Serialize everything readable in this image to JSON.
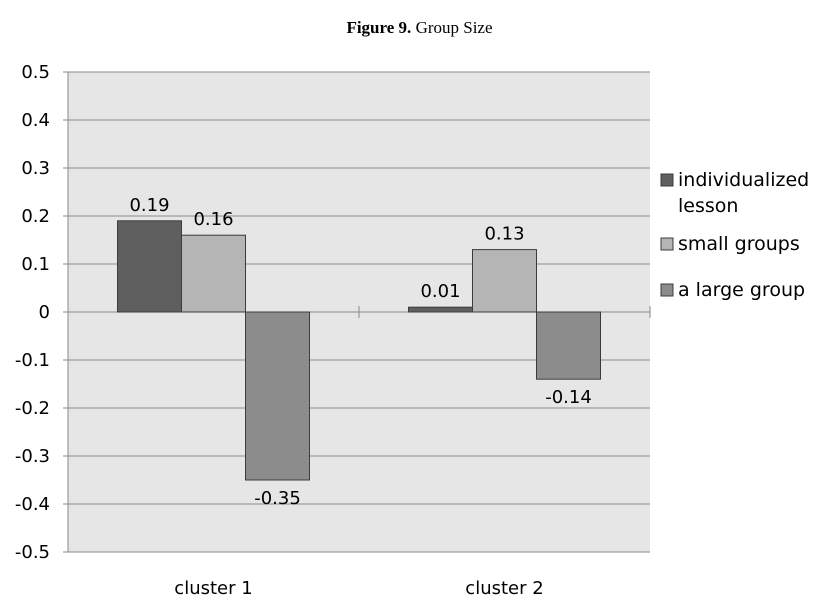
{
  "figure_label": "Figure 9.",
  "chart_data": {
    "type": "bar",
    "title": "Group Size",
    "categories": [
      "cluster 1",
      "cluster 2"
    ],
    "series": [
      {
        "name": "individualized lesson",
        "values": [
          0.19,
          0.01
        ],
        "color": "#5f5f5f"
      },
      {
        "name": "small groups",
        "values": [
          0.16,
          0.13
        ],
        "color": "#b5b5b5"
      },
      {
        "name": "a large group",
        "values": [
          -0.35,
          -0.14
        ],
        "color": "#8c8c8c"
      }
    ],
    "data_labels": [
      [
        "0.19",
        "0.01"
      ],
      [
        "0.16",
        "0.13"
      ],
      [
        "-0.35",
        "-0.14"
      ]
    ],
    "yticks": [
      "0.5",
      "0.4",
      "0.3",
      "0.2",
      "0.1",
      "0",
      "-0.1",
      "-0.2",
      "-0.3",
      "-0.4",
      "-0.5"
    ],
    "ylim": [
      -0.5,
      0.5
    ],
    "grid": true,
    "plot_background": "#e6e6e6",
    "legend_position": "right"
  }
}
